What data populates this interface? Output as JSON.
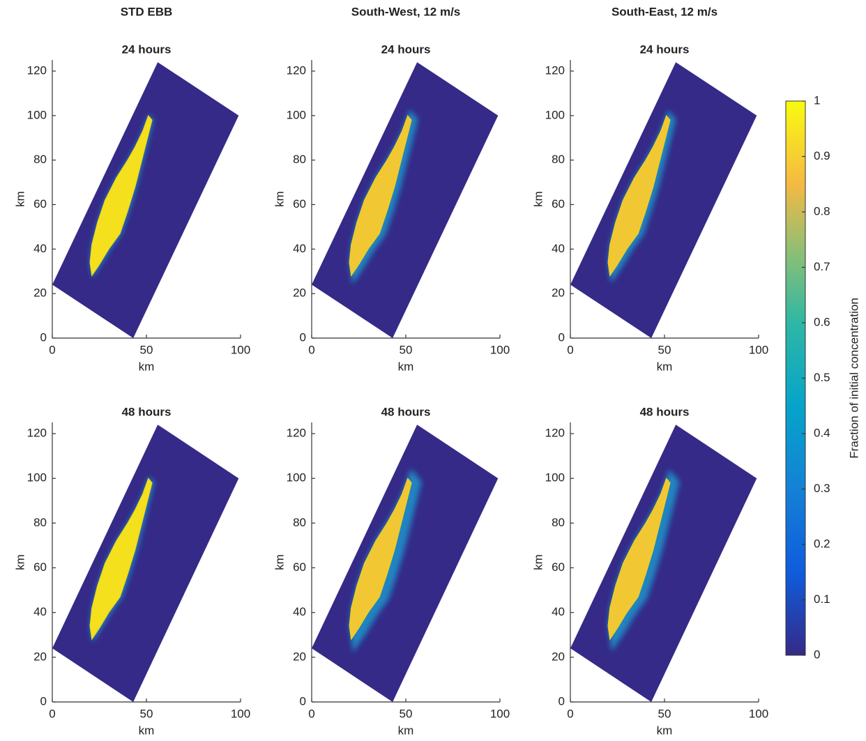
{
  "column_titles": [
    "STD EBB",
    "South-West, 12 m/s",
    "South-East, 12 m/s"
  ],
  "chart_data": [
    {
      "type": "heatmap",
      "title": "24 hours",
      "xlabel": "km",
      "ylabel": "km",
      "xlim": [
        0,
        100
      ],
      "ylim": [
        0,
        125
      ],
      "xticks": [
        0,
        50,
        100
      ],
      "yticks": [
        0,
        20,
        40,
        60,
        80,
        100,
        120
      ],
      "color": "#352a87",
      "domain": {
        "x": [
          0,
          43,
          99,
          56
        ],
        "y": [
          24,
          0,
          100,
          124
        ]
      }
    },
    {
      "type": "heatmap",
      "title": "24 hours",
      "xlabel": "km",
      "ylabel": "km",
      "xlim": [
        0,
        100
      ],
      "ylim": [
        0,
        125
      ],
      "xticks": [
        0,
        50,
        100
      ],
      "yticks": [
        0,
        20,
        40,
        60,
        80,
        100,
        120
      ],
      "color": "#352a87",
      "domain": {
        "x": [
          0,
          43,
          99,
          56
        ],
        "y": [
          24,
          0,
          100,
          124
        ]
      }
    },
    {
      "type": "heatmap",
      "title": "24 hours",
      "xlabel": "km",
      "ylabel": "km",
      "xlim": [
        0,
        100
      ],
      "ylim": [
        0,
        125
      ],
      "xticks": [
        0,
        50,
        100
      ],
      "yticks": [
        0,
        20,
        40,
        60,
        80,
        100,
        120
      ],
      "color": "#352a87",
      "domain": {
        "x": [
          0,
          43,
          99,
          56
        ],
        "y": [
          24,
          0,
          100,
          124
        ]
      }
    },
    {
      "type": "heatmap",
      "title": "48 hours",
      "xlabel": "km",
      "ylabel": "km",
      "xlim": [
        0,
        100
      ],
      "ylim": [
        0,
        125
      ],
      "xticks": [
        0,
        50,
        100
      ],
      "yticks": [
        0,
        20,
        40,
        60,
        80,
        100,
        120
      ],
      "color": "#352a87",
      "domain": {
        "x": [
          0,
          43,
          99,
          56
        ],
        "y": [
          24,
          0,
          100,
          124
        ]
      }
    },
    {
      "type": "heatmap",
      "title": "48 hours",
      "xlabel": "km",
      "ylabel": "km",
      "xlim": [
        0,
        100
      ],
      "ylim": [
        0,
        125
      ],
      "xticks": [
        0,
        50,
        100
      ],
      "yticks": [
        0,
        20,
        40,
        60,
        80,
        100,
        120
      ],
      "color": "#352a87",
      "domain": {
        "x": [
          0,
          43,
          99,
          56
        ],
        "y": [
          24,
          0,
          100,
          124
        ]
      }
    },
    {
      "type": "heatmap",
      "title": "48 hours",
      "xlabel": "km",
      "ylabel": "km",
      "xlim": [
        0,
        100
      ],
      "ylim": [
        0,
        125
      ],
      "xticks": [
        0,
        50,
        100
      ],
      "yticks": [
        0,
        20,
        40,
        60,
        80,
        100,
        120
      ],
      "color": "#352a87",
      "domain": {
        "x": [
          0,
          43,
          99,
          56
        ],
        "y": [
          24,
          0,
          100,
          124
        ]
      }
    }
  ],
  "colorbar": {
    "label": "Fraction of initial concentration",
    "clim": [
      0,
      1
    ],
    "ticks": [
      0,
      0.1,
      0.2,
      0.3,
      0.4,
      0.5,
      0.6,
      0.7,
      0.8,
      0.9,
      1
    ]
  }
}
